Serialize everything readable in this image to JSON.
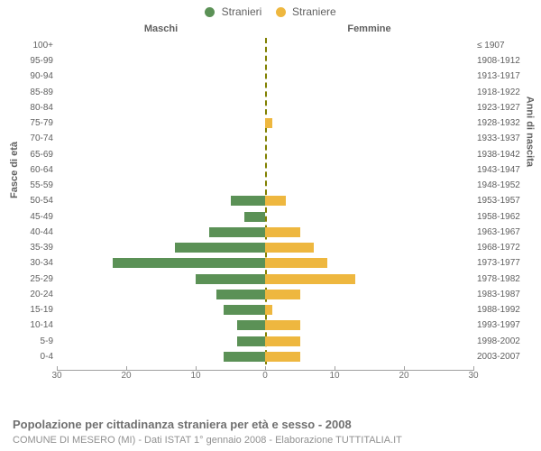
{
  "chart": {
    "type": "population-pyramid",
    "legend": {
      "male_label": "Stranieri",
      "female_label": "Straniere",
      "male_color": "#5b9156",
      "female_color": "#eeb73f"
    },
    "side_title_left": "Maschi",
    "side_title_right": "Femmine",
    "y_title_left": "Fasce di età",
    "y_title_right": "Anni di nascita",
    "xmax": 30,
    "xticks": [
      30,
      20,
      10,
      0,
      10,
      20,
      30
    ],
    "bar_color_left": "#5b9156",
    "bar_color_right": "#eeb73f",
    "background_color": "#ffffff",
    "rows": [
      {
        "age": "100+",
        "birth": "≤ 1907",
        "m": 0,
        "f": 0
      },
      {
        "age": "95-99",
        "birth": "1908-1912",
        "m": 0,
        "f": 0
      },
      {
        "age": "90-94",
        "birth": "1913-1917",
        "m": 0,
        "f": 0
      },
      {
        "age": "85-89",
        "birth": "1918-1922",
        "m": 0,
        "f": 0
      },
      {
        "age": "80-84",
        "birth": "1923-1927",
        "m": 0,
        "f": 0
      },
      {
        "age": "75-79",
        "birth": "1928-1932",
        "m": 0,
        "f": 1
      },
      {
        "age": "70-74",
        "birth": "1933-1937",
        "m": 0,
        "f": 0
      },
      {
        "age": "65-69",
        "birth": "1938-1942",
        "m": 0,
        "f": 0
      },
      {
        "age": "60-64",
        "birth": "1943-1947",
        "m": 0,
        "f": 0
      },
      {
        "age": "55-59",
        "birth": "1948-1952",
        "m": 0,
        "f": 0
      },
      {
        "age": "50-54",
        "birth": "1953-1957",
        "m": 5,
        "f": 3
      },
      {
        "age": "45-49",
        "birth": "1958-1962",
        "m": 3,
        "f": 0
      },
      {
        "age": "40-44",
        "birth": "1963-1967",
        "m": 8,
        "f": 5
      },
      {
        "age": "35-39",
        "birth": "1968-1972",
        "m": 13,
        "f": 7
      },
      {
        "age": "30-34",
        "birth": "1973-1977",
        "m": 22,
        "f": 9
      },
      {
        "age": "25-29",
        "birth": "1978-1982",
        "m": 10,
        "f": 13
      },
      {
        "age": "20-24",
        "birth": "1983-1987",
        "m": 7,
        "f": 5
      },
      {
        "age": "15-19",
        "birth": "1988-1992",
        "m": 6,
        "f": 1
      },
      {
        "age": "10-14",
        "birth": "1993-1997",
        "m": 4,
        "f": 5
      },
      {
        "age": "5-9",
        "birth": "1998-2002",
        "m": 4,
        "f": 5
      },
      {
        "age": "0-4",
        "birth": "2003-2007",
        "m": 6,
        "f": 5
      }
    ]
  },
  "footer": {
    "title": "Popolazione per cittadinanza straniera per età e sesso - 2008",
    "subtitle": "COMUNE DI MESERO (MI) - Dati ISTAT 1° gennaio 2008 - Elaborazione TUTTITALIA.IT"
  }
}
